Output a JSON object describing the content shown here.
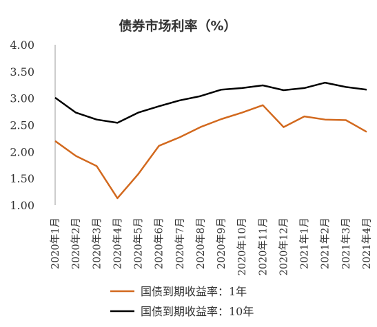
{
  "chart_data": {
    "type": "line",
    "title": "债券市场利率（%）",
    "xlabel": "",
    "ylabel": "",
    "ylim": [
      1.0,
      4.0
    ],
    "yticks": [
      "1.00",
      "1.50",
      "2.00",
      "2.50",
      "3.00",
      "3.50",
      "4.00"
    ],
    "grid": false,
    "legend": "bottom",
    "categories": [
      "2020年1月",
      "2020年2月",
      "2020年3月",
      "2020年4月",
      "2020年5月",
      "2020年6月",
      "2020年7月",
      "2020年8月",
      "2020年9月",
      "2020年10月",
      "2020年11月",
      "2020年12月",
      "2021年1月",
      "2021年2月",
      "2021年3月",
      "2021年4月"
    ],
    "series": [
      {
        "name": "国债到期收益率：1年",
        "color": "#d2691e",
        "values": [
          2.2,
          1.92,
          1.73,
          1.13,
          1.58,
          2.11,
          2.27,
          2.46,
          2.61,
          2.73,
          2.87,
          2.46,
          2.66,
          2.6,
          2.59,
          2.37
        ]
      },
      {
        "name": "国债到期收益率：10年",
        "color": "#000000",
        "values": [
          3.01,
          2.73,
          2.6,
          2.54,
          2.73,
          2.85,
          2.96,
          3.04,
          3.16,
          3.19,
          3.24,
          3.15,
          3.19,
          3.29,
          3.21,
          3.16
        ]
      }
    ]
  }
}
